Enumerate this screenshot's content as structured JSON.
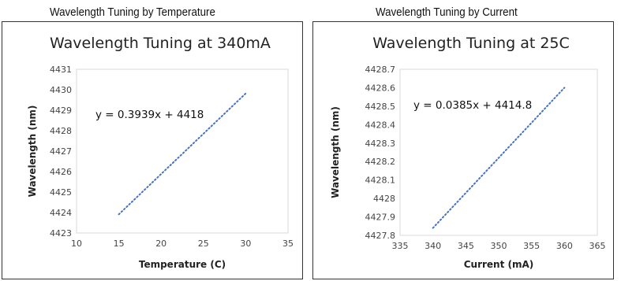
{
  "figure": {
    "captions": [
      "Wavelength Tuning by Temperature",
      "Wavelength Tuning by Current"
    ]
  },
  "chart_data": [
    {
      "type": "line",
      "title": "Wavelength Tuning at 340mA",
      "xlabel": "Temperature (C)",
      "ylabel": "Wavelength (nm)",
      "xlim": [
        10,
        35
      ],
      "ylim": [
        4423,
        4431
      ],
      "x_ticks": [
        "10",
        "15",
        "20",
        "25",
        "30",
        "35"
      ],
      "y_ticks": [
        "4423",
        "4424",
        "4425",
        "4426",
        "4427",
        "4428",
        "4429",
        "4430",
        "4431"
      ],
      "trendline_equation": "y = 0.3939x + 4418",
      "series": [
        {
          "x": [
            15,
            30
          ],
          "y": [
            4423.91,
            4429.82
          ],
          "line_style": "dotted",
          "color": "#4472C4"
        }
      ]
    },
    {
      "type": "line",
      "title": "Wavelength Tuning at 25C",
      "xlabel": "Current (mA)",
      "ylabel": "Wavelength (nm)",
      "xlim": [
        335,
        365
      ],
      "ylim": [
        4427.8,
        4428.7
      ],
      "x_ticks": [
        "335",
        "340",
        "345",
        "350",
        "355",
        "360",
        "365"
      ],
      "y_ticks": [
        "4427.8",
        "4427.9",
        "4428",
        "4428.1",
        "4428.2",
        "4428.3",
        "4428.4",
        "4428.5",
        "4428.6",
        "4428.7"
      ],
      "trendline_equation": "y = 0.0385x + 4414.8",
      "series": [
        {
          "x": [
            340,
            360
          ],
          "y": [
            4427.84,
            4428.6
          ],
          "line_style": "dotted",
          "color": "#4472C4"
        }
      ]
    }
  ]
}
